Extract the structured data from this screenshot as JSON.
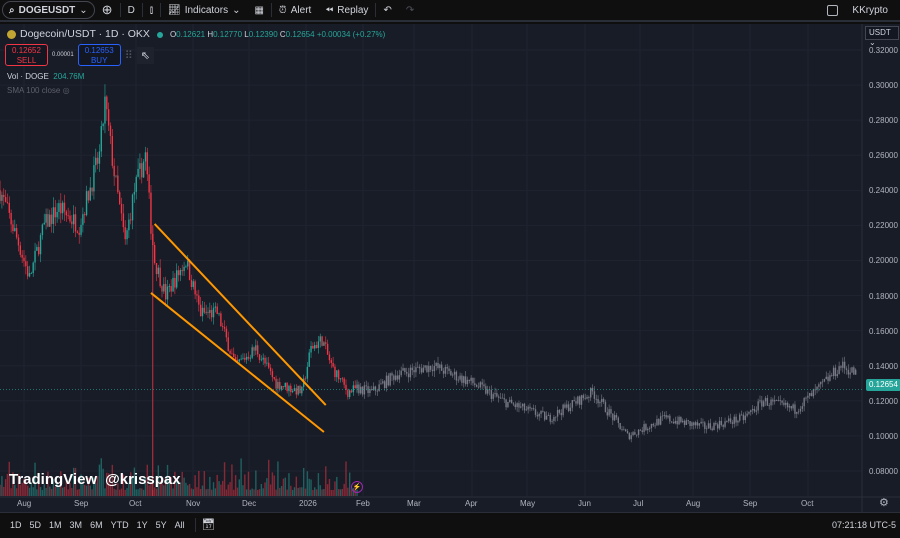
{
  "toolbar": {
    "symbol": "DOGEUSDT",
    "interval": "D",
    "indicators": "Indicators",
    "alert": "Alert",
    "replay": "Replay",
    "user": "KKrypto"
  },
  "legend": {
    "title": "Dogecoin/USDT · 1D · OKX",
    "o_label": "O",
    "o": "0.12621",
    "h_label": "H",
    "h": "0.12770",
    "l_label": "L",
    "l": "0.12390",
    "c_label": "C",
    "c": "0.12654",
    "change": "+0.00034 (+0.27%)"
  },
  "trade": {
    "sell_price": "0.12652",
    "sell": "SELL",
    "spread": "0.00001",
    "buy_price": "0.12653",
    "buy": "BUY"
  },
  "volume": {
    "label": "Vol · DOGE",
    "value": "204.76M"
  },
  "sma": {
    "label": "SMA 100 close"
  },
  "price_axis": {
    "currency": "USDT",
    "ticks": [
      "0.32000",
      "0.30000",
      "0.28000",
      "0.26000",
      "0.24000",
      "0.22000",
      "0.20000",
      "0.18000",
      "0.16000",
      "0.14000",
      "0.12000",
      "0.10000",
      "0.08000"
    ],
    "current": "0.12654"
  },
  "time_axis": [
    "Aug",
    "Sep",
    "Oct",
    "Nov",
    "Dec",
    "2026",
    "Feb",
    "Mar",
    "Apr",
    "May",
    "Jun",
    "Jul",
    "Aug",
    "Sep",
    "Oct"
  ],
  "ranges": [
    "1D",
    "5D",
    "1M",
    "3M",
    "6M",
    "YTD",
    "1Y",
    "5Y",
    "All"
  ],
  "clock": "07:21:18 UTC-5",
  "watermark": {
    "brand": "TradingView",
    "author": "@krisspax"
  },
  "colors": {
    "up": "#26a69a",
    "down": "#f23645",
    "projection": "#787b86",
    "trendline": "#ff9800",
    "bg": "#181c27"
  },
  "chart_data": {
    "type": "candlestick",
    "price_range": [
      0.08,
      0.32
    ],
    "actual_path": [
      [
        "2025-07-19",
        0.24
      ],
      [
        "2025-07-29",
        0.21
      ],
      [
        "2025-08-04",
        0.19
      ],
      [
        "2025-08-12",
        0.22
      ],
      [
        "2025-08-20",
        0.23
      ],
      [
        "2025-08-31",
        0.22
      ],
      [
        "2025-09-11",
        0.26
      ],
      [
        "2025-09-14",
        0.29
      ],
      [
        "2025-09-19",
        0.25
      ],
      [
        "2025-09-25",
        0.21
      ],
      [
        "2025-09-30",
        0.24
      ],
      [
        "2025-10-06",
        0.26
      ],
      [
        "2025-10-09",
        0.22
      ],
      [
        "2025-10-11",
        0.2
      ],
      [
        "2025-10-17",
        0.18
      ],
      [
        "2025-10-28",
        0.2
      ],
      [
        "2025-11-05",
        0.17
      ],
      [
        "2025-11-14",
        0.17
      ],
      [
        "2025-11-24",
        0.14
      ],
      [
        "2025-12-05",
        0.15
      ],
      [
        "2025-12-16",
        0.13
      ],
      [
        "2025-12-30",
        0.125
      ],
      [
        "2026-01-04",
        0.15
      ],
      [
        "2026-01-10",
        0.155
      ],
      [
        "2026-01-15",
        0.14
      ],
      [
        "2026-01-24",
        0.125
      ],
      [
        "2026-01-29",
        0.127
      ]
    ],
    "projection_path": [
      [
        "2026-01-29",
        0.127
      ],
      [
        "2026-02-06",
        0.125
      ],
      [
        "2026-02-19",
        0.135
      ],
      [
        "2026-03-11",
        0.14
      ],
      [
        "2026-04-02",
        0.13
      ],
      [
        "2026-04-18",
        0.12
      ],
      [
        "2026-05-13",
        0.11
      ],
      [
        "2026-06-06",
        0.125
      ],
      [
        "2026-06-25",
        0.1
      ],
      [
        "2026-07-15",
        0.11
      ],
      [
        "2026-08-06",
        0.105
      ],
      [
        "2026-08-27",
        0.11
      ],
      [
        "2026-09-07",
        0.12
      ],
      [
        "2026-09-24",
        0.115
      ],
      [
        "2026-10-05",
        0.125
      ],
      [
        "2026-10-19",
        0.14
      ],
      [
        "2026-10-28",
        0.135
      ]
    ],
    "trendlines": [
      [
        [
          "2025-10-11",
          0.2208
        ],
        [
          "2026-01-12",
          0.1176
        ]
      ],
      [
        [
          "2025-10-09",
          0.1815
        ],
        [
          "2026-01-11",
          0.1022
        ]
      ]
    ]
  }
}
